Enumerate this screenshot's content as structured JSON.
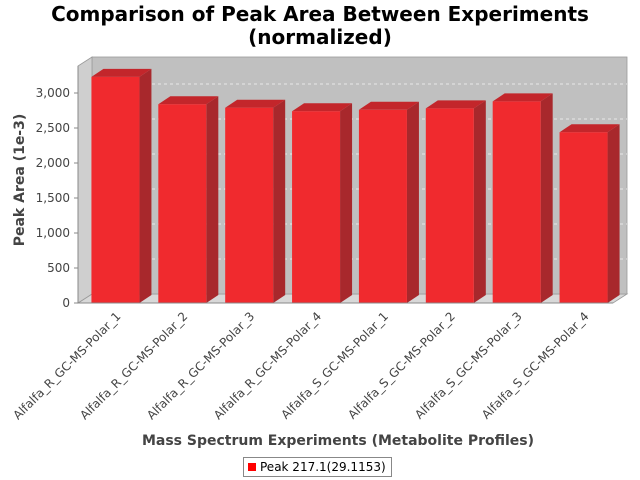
{
  "chart_data": {
    "type": "bar",
    "title_line1": "Comparison of Peak Area Between Experiments",
    "title_line2": "(normalized)",
    "xlabel": "Mass Spectrum Experiments (Metabolite Profiles)",
    "ylabel": "Peak Area (1e-3)",
    "categories": [
      "Alfalfa_R_GC-MS-Polar_1",
      "Alfalfa_R_GC-MS-Polar_2",
      "Alfalfa_R_GC-MS-Polar_3",
      "Alfalfa_R_GC-MS-Polar_4",
      "Alfalfa_S_GC-MS-Polar_1",
      "Alfalfa_S_GC-MS-Polar_2",
      "Alfalfa_S_GC-MS-Polar_3",
      "Alfalfa_S_GC-MS-Polar_4"
    ],
    "series": [
      {
        "name": "Peak 217.1(29.1153)",
        "values": [
          3230,
          2840,
          2790,
          2740,
          2760,
          2780,
          2880,
          2440
        ]
      }
    ],
    "yticks": [
      "0",
      "500",
      "1,000",
      "1,500",
      "2,000",
      "2,500",
      "3,000"
    ],
    "ytick_values": [
      0,
      500,
      1000,
      1500,
      2000,
      2500,
      3000
    ],
    "ylim": [
      0,
      3300
    ],
    "grid": true,
    "legend_position": "bottom",
    "colors": {
      "bar_front": "#f02a2e",
      "bar_top": "#c3262b",
      "bar_side": "#a8282c",
      "plot_back": "#c0c0c0",
      "plot_floor": "#d8d8d8",
      "grid": "#e8e8e8"
    }
  }
}
